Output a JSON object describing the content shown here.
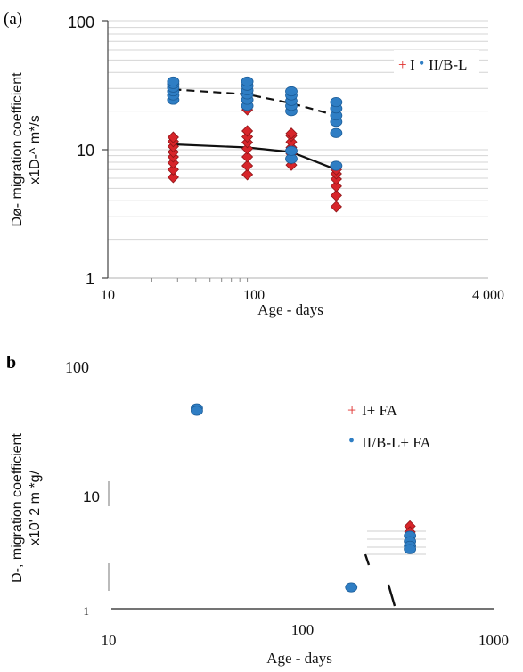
{
  "panel_a_label": "(a)",
  "panel_b_label": "b",
  "chart_data": [
    {
      "type": "scatter",
      "panel": "a",
      "xlabel": "Age - days",
      "ylabel_line1": "Dø- migration coefficient",
      "ylabel_line2": "x1D-^ m*/s",
      "x_scale": "log",
      "y_scale": "log",
      "xlim": [
        10,
        4000
      ],
      "ylim": [
        1,
        100
      ],
      "x_ticks": [
        "10",
        "100",
        "4 000"
      ],
      "y_ticks": [
        "1",
        "10",
        "100"
      ],
      "grid": "horizontal minor",
      "legend_placement": "top-right",
      "legend": [
        {
          "symbol": "+",
          "label": "I",
          "color": "#e0312e"
        },
        {
          "symbol": "•",
          "label": "II/B-L",
          "color": "#2f7ec4"
        }
      ],
      "series": [
        {
          "name": "I",
          "marker": "diamond",
          "color": "#d7252a",
          "points": [
            [
              28,
              6.1
            ],
            [
              28,
              7.0
            ],
            [
              28,
              7.9
            ],
            [
              28,
              8.8
            ],
            [
              28,
              9.6
            ],
            [
              28,
              10.6
            ],
            [
              28,
              11.6
            ],
            [
              28,
              12.5
            ],
            [
              90,
              6.4
            ],
            [
              90,
              7.5
            ],
            [
              90,
              8.8
            ],
            [
              90,
              10.2
            ],
            [
              90,
              11.4
            ],
            [
              90,
              12.6
            ],
            [
              90,
              14.0
            ],
            [
              90,
              20.5
            ],
            [
              180,
              7.6
            ],
            [
              180,
              8.5
            ],
            [
              180,
              9.3
            ],
            [
              180,
              10.4
            ],
            [
              180,
              11.5
            ],
            [
              180,
              12.8
            ],
            [
              180,
              13.4
            ],
            [
              365,
              3.6
            ],
            [
              365,
              4.4
            ],
            [
              365,
              5.2
            ],
            [
              365,
              5.9
            ],
            [
              365,
              6.5
            ],
            [
              365,
              7.0
            ]
          ]
        },
        {
          "name": "II/B-L",
          "marker": "circle",
          "color": "#2f7ec4",
          "points": [
            [
              28,
              24.5
            ],
            [
              28,
              26.5
            ],
            [
              28,
              28.5
            ],
            [
              28,
              30.5
            ],
            [
              28,
              32.5
            ],
            [
              28,
              34.0
            ],
            [
              90,
              22.0
            ],
            [
              90,
              24.5
            ],
            [
              90,
              27.0
            ],
            [
              90,
              29.0
            ],
            [
              90,
              31.5
            ],
            [
              90,
              34.0
            ],
            [
              180,
              8.5
            ],
            [
              180,
              9.8
            ],
            [
              180,
              20.0
            ],
            [
              180,
              22.0
            ],
            [
              180,
              24.0
            ],
            [
              180,
              26.5
            ],
            [
              180,
              28.5
            ],
            [
              365,
              7.5
            ],
            [
              365,
              13.5
            ],
            [
              365,
              16.5
            ],
            [
              365,
              18.5
            ],
            [
              365,
              21.0
            ],
            [
              365,
              23.5
            ]
          ]
        }
      ],
      "trend_lines": [
        {
          "series": "I",
          "style": "solid",
          "x": [
            28,
            90,
            180,
            365
          ],
          "y": [
            11.0,
            10.4,
            9.6,
            7.0
          ]
        },
        {
          "series": "II/B-L",
          "style": "dashed",
          "x": [
            28,
            90,
            180,
            365
          ],
          "y": [
            29.5,
            27.0,
            23.0,
            18.5
          ]
        }
      ]
    },
    {
      "type": "scatter",
      "panel": "b",
      "xlabel": "Age - days",
      "ylabel_line1": "D-, migration coefficient",
      "ylabel_line2": "x10' 2 m *g/",
      "x_scale": "log",
      "y_scale": "log",
      "xlim": [
        10,
        1000
      ],
      "ylim": [
        1,
        100
      ],
      "x_ticks": [
        "10",
        "100",
        "1000"
      ],
      "y_ticks": [
        "1",
        "10",
        "100"
      ],
      "legend_placement": "top-right",
      "legend": [
        {
          "symbol": "+",
          "label": "I+ FA",
          "color": "#e0312e"
        },
        {
          "symbol": "•",
          "label": "II/B-L+ FA",
          "color": "#2f7ec4"
        }
      ],
      "series": [
        {
          "name": "I+ FA",
          "marker": "diamond",
          "color": "#d7252a",
          "points": [
            [
              365,
              4.8
            ],
            [
              365,
              4.3
            ]
          ]
        },
        {
          "name": "II/B-L+ FA",
          "marker": "circle",
          "color": "#2f7ec4",
          "points": [
            [
              28,
              45.0
            ],
            [
              28,
              43.0
            ],
            [
              180,
              1.5
            ],
            [
              365,
              4.0
            ],
            [
              365,
              3.6
            ],
            [
              365,
              3.3
            ],
            [
              365,
              3.1
            ]
          ]
        }
      ]
    }
  ]
}
